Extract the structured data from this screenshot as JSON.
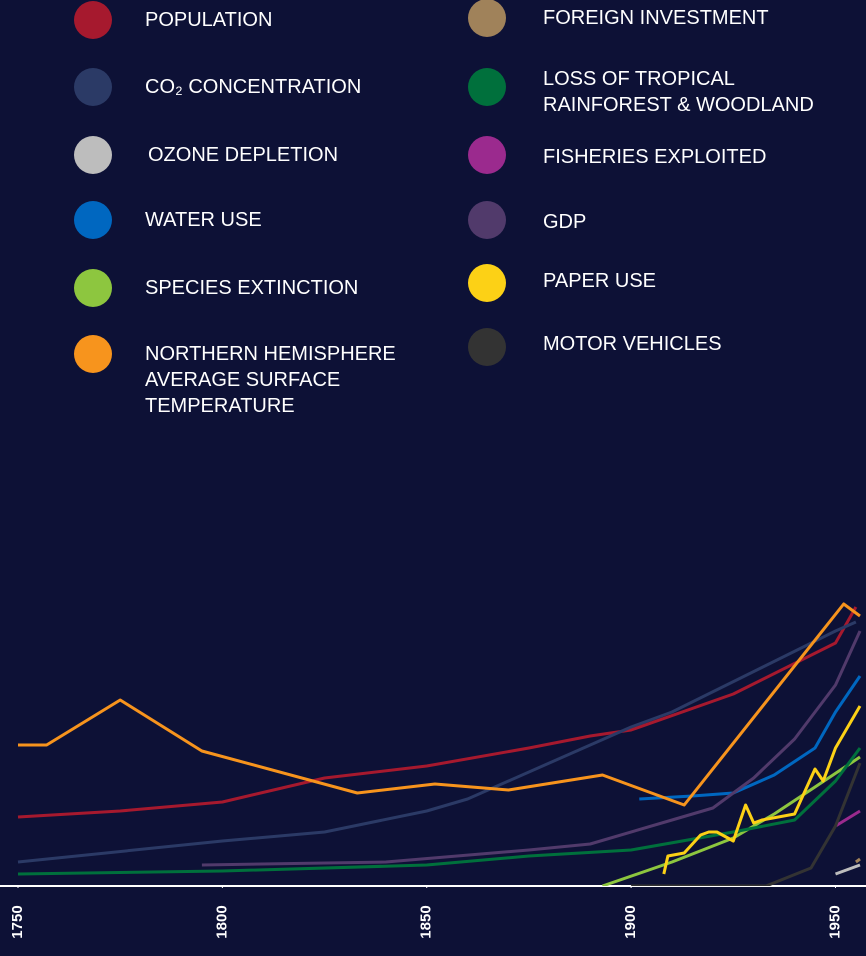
{
  "chart_data": {
    "type": "line",
    "xlim": [
      1750,
      1956
    ],
    "xticks": [
      1750,
      1800,
      1850,
      1900,
      1950
    ],
    "ylim": [
      0,
      100
    ],
    "series": [
      {
        "name": "POPULATION",
        "color": "#a6192e",
        "x": [
          1750,
          1775,
          1800,
          1825,
          1850,
          1875,
          1890,
          1900,
          1925,
          1950,
          1955
        ],
        "values": [
          23,
          25,
          28,
          36,
          40,
          46,
          50,
          52,
          64,
          81,
          93
        ]
      },
      {
        "name": "CO₂ CONCENTRATION",
        "color": "#2b3a66",
        "x": [
          1750,
          1800,
          1825,
          1850,
          1860,
          1900,
          1910,
          1950,
          1955
        ],
        "values": [
          8,
          15,
          18,
          25,
          29,
          53,
          58,
          85,
          88
        ]
      },
      {
        "name": "OZONE DEPLETION",
        "color": "#bdbdbd",
        "x": [
          1950,
          1956
        ],
        "values": [
          4,
          7
        ]
      },
      {
        "name": "WATER USE",
        "color": "#0067c0",
        "x": [
          1902,
          1915,
          1925,
          1935,
          1945,
          1950,
          1956
        ],
        "values": [
          29,
          30,
          31,
          37,
          46,
          58,
          70
        ]
      },
      {
        "name": "SPECIES EXTINCTION",
        "color": "#8dc63f",
        "x": [
          1893,
          1910,
          1925,
          1935,
          1945,
          1956
        ],
        "values": [
          0,
          8,
          16,
          24,
          33,
          43
        ]
      },
      {
        "name": "NORTHERN HEMISPHERE AVERAGE SURFACE TEMPERATURE",
        "color": "#f7941d",
        "x": [
          1750,
          1757,
          1775,
          1795,
          1833,
          1852,
          1870,
          1893,
          1913,
          1952,
          1956
        ],
        "values": [
          47,
          47,
          62,
          45,
          31,
          34,
          32,
          37,
          27,
          94,
          90
        ]
      },
      {
        "name": "FOREIGN INVESTMENT",
        "color": "#a0825a",
        "x": [
          1955,
          1956
        ],
        "values": [
          8,
          9
        ]
      },
      {
        "name": "LOSS OF TROPICAL RAINFOREST & WOODLAND",
        "color": "#00703c",
        "x": [
          1750,
          1800,
          1850,
          1875,
          1900,
          1925,
          1940,
          1950,
          1956
        ],
        "values": [
          4,
          5,
          7,
          10,
          12,
          18,
          22,
          35,
          46
        ]
      },
      {
        "name": "FISHERIES EXPLOITED",
        "color": "#9b2a8e",
        "x": [
          1950,
          1956
        ],
        "values": [
          20,
          25
        ]
      },
      {
        "name": "GDP",
        "color": "#513a6b",
        "x": [
          1795,
          1840,
          1875,
          1890,
          1910,
          1920,
          1930,
          1940,
          1950,
          1956
        ],
        "values": [
          7,
          8,
          12,
          14,
          22,
          26,
          36,
          49,
          67,
          85
        ]
      },
      {
        "name": "PAPER USE",
        "color": "#fcd116",
        "x": [
          1908,
          1909,
          1913,
          1917,
          1919,
          1921,
          1925,
          1928,
          1930,
          1932,
          1940,
          1945,
          1947,
          1950,
          1956
        ],
        "values": [
          4,
          10,
          11,
          17,
          18,
          18,
          15,
          27,
          21,
          22,
          24,
          39,
          35,
          46,
          60
        ]
      },
      {
        "name": "MOTOR VEHICLES",
        "color": "#333333",
        "x": [
          1900,
          1933,
          1944,
          1950,
          1956
        ],
        "values": [
          0,
          0,
          6,
          20,
          41
        ]
      }
    ]
  }
}
